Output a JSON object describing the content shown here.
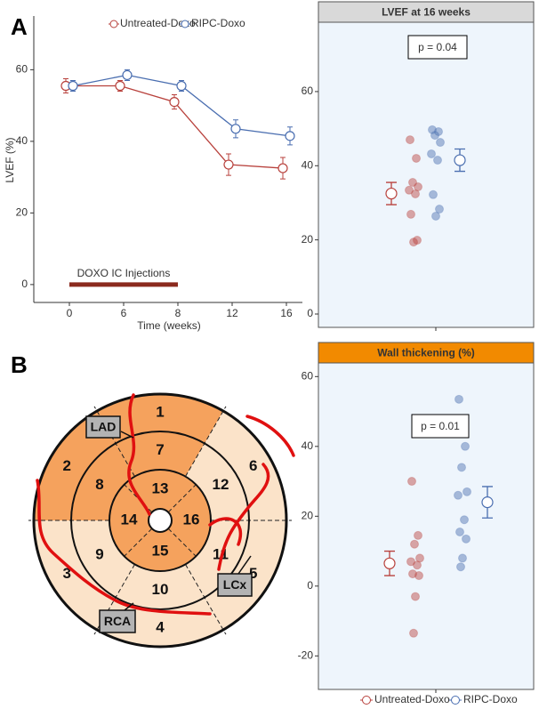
{
  "panels": [
    "A",
    "B"
  ],
  "chart_data": [
    {
      "type": "line",
      "ylabel": "LVEF (%)",
      "xlabel": "Time (weeks)",
      "categories": [
        "0",
        "6",
        "8",
        "12",
        "16"
      ],
      "series": [
        {
          "name": "Untreated-Doxo",
          "color": "#b8413c",
          "values": [
            55.5,
            55.5,
            51,
            33.5,
            32.5
          ],
          "errors": [
            2,
            1.5,
            2,
            3,
            3
          ]
        },
        {
          "name": "RIPC-Doxo",
          "color": "#4a6eb0",
          "values": [
            55.5,
            58.5,
            55.5,
            43.5,
            41.5
          ],
          "errors": [
            1.5,
            1.5,
            1.5,
            2.5,
            2.5
          ]
        }
      ],
      "ylim": [
        -5,
        75
      ],
      "yticks": [
        0,
        20,
        40,
        60
      ],
      "legend": "top",
      "annotation": {
        "text": "DOXO IC Injections",
        "from": 0,
        "to": 8,
        "color": "#8b2a1e"
      }
    },
    {
      "type": "strip",
      "title": "LVEF at 16 weeks",
      "title_color": "#d9d9d9",
      "title_text_color": "#111",
      "annotation": "p = 0.04",
      "series": [
        {
          "color": "#b8413c",
          "values": [
            47,
            42,
            35.5,
            34.3,
            33.4,
            32.4,
            26.9,
            19.9,
            19.4
          ],
          "mean": 32.5,
          "error": 3
        },
        {
          "color": "#4a6eb0",
          "values": [
            49.7,
            49.2,
            48.2,
            46.3,
            43.2,
            41.5,
            32.2,
            28.3,
            26.4
          ],
          "mean": 41.5,
          "error": 3
        }
      ],
      "ylim": [
        -3.6,
        78.7
      ],
      "yticks": [
        0,
        20,
        40,
        60
      ]
    },
    {
      "type": "strip",
      "title": "Wall thickening (%)",
      "title_color": "#f28a00",
      "title_text_color": "#fff",
      "annotation": "p = 0.01",
      "series": [
        {
          "name": "Untreated-Doxo",
          "color": "#b8413c",
          "values": [
            30,
            14.5,
            12,
            8,
            7,
            6,
            3.5,
            3,
            -3,
            -13.5
          ],
          "mean": 6.5,
          "error": 3.5
        },
        {
          "name": "RIPC-Doxo",
          "color": "#4a6eb0",
          "values": [
            53.5,
            40,
            34,
            27,
            26,
            19,
            15.5,
            13.5,
            8,
            5.5
          ],
          "mean": 24,
          "error": 4.5
        }
      ],
      "ylim": [
        -29.6,
        63.9
      ],
      "yticks": [
        -20,
        0,
        20,
        40,
        60
      ],
      "legend": "bottom"
    }
  ],
  "diagram": {
    "segments": [
      "1",
      "2",
      "3",
      "4",
      "5",
      "6",
      "7",
      "8",
      "9",
      "10",
      "11",
      "12",
      "13",
      "14",
      "15",
      "16"
    ],
    "fills": [
      "#f5a25d",
      "#f5a25d",
      "#fbe3c9",
      "#fbe3c9",
      "#fbe3c9",
      "#fbe3c9",
      "#f5a25d",
      "#f5a25d",
      "#fbe3c9",
      "#fbe3c9",
      "#fbe3c9",
      "#fbe3c9",
      "#f5a25d",
      "#f5a25d",
      "#f5a25d",
      "#f5a25d"
    ],
    "arteries": [
      "LAD",
      "LCx",
      "RCA"
    ]
  }
}
